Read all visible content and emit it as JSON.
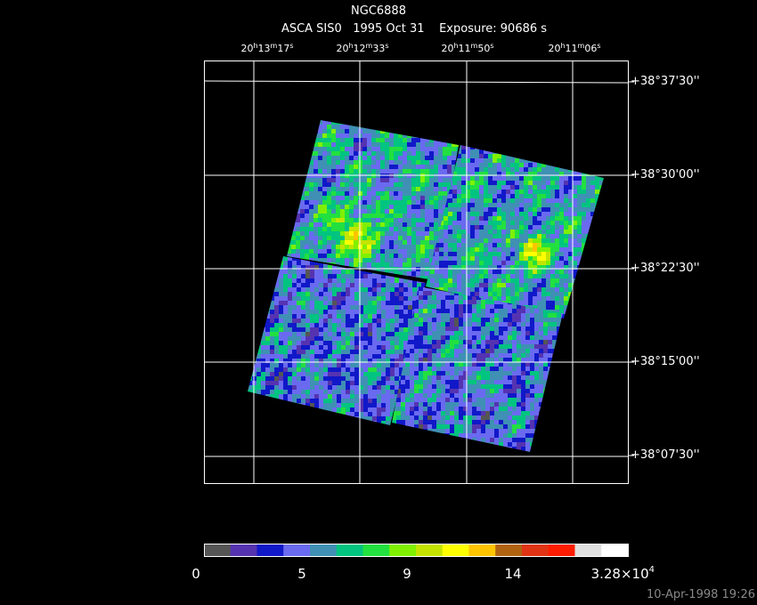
{
  "title": "NGC6888",
  "subtitle": "ASCA SIS0   1995 Oct 31    Exposure: 90686 s",
  "ra_labels": [
    [
      "20",
      "h",
      "13",
      "m",
      "17",
      "s"
    ],
    [
      "20",
      "h",
      "12",
      "m",
      "33",
      "s"
    ],
    [
      "20",
      "h",
      "11",
      "m",
      "50",
      "s"
    ],
    [
      "20",
      "h",
      "11",
      "m",
      "06",
      "s"
    ]
  ],
  "dec_labels": [
    "+38°37'30''",
    "+38°30'00''",
    "+38°22'30''",
    "+38°15'00''",
    "+38°07'30''"
  ],
  "colorbar": {
    "colors": [
      "#555555",
      "#5533b0",
      "#1018c8",
      "#6a6af0",
      "#3f90b4",
      "#00c480",
      "#22e040",
      "#80f000",
      "#c4e400",
      "#ffff00",
      "#ffc400",
      "#b06412",
      "#e03414",
      "#ff1c00",
      "#e0e0e0",
      "#ffffff"
    ],
    "labels": [
      [
        "0"
      ],
      [
        "5"
      ],
      [
        "9"
      ],
      [
        "14"
      ],
      [
        "3.28×10",
        "4"
      ]
    ]
  },
  "footer": "10-Apr-1998 19:26"
}
